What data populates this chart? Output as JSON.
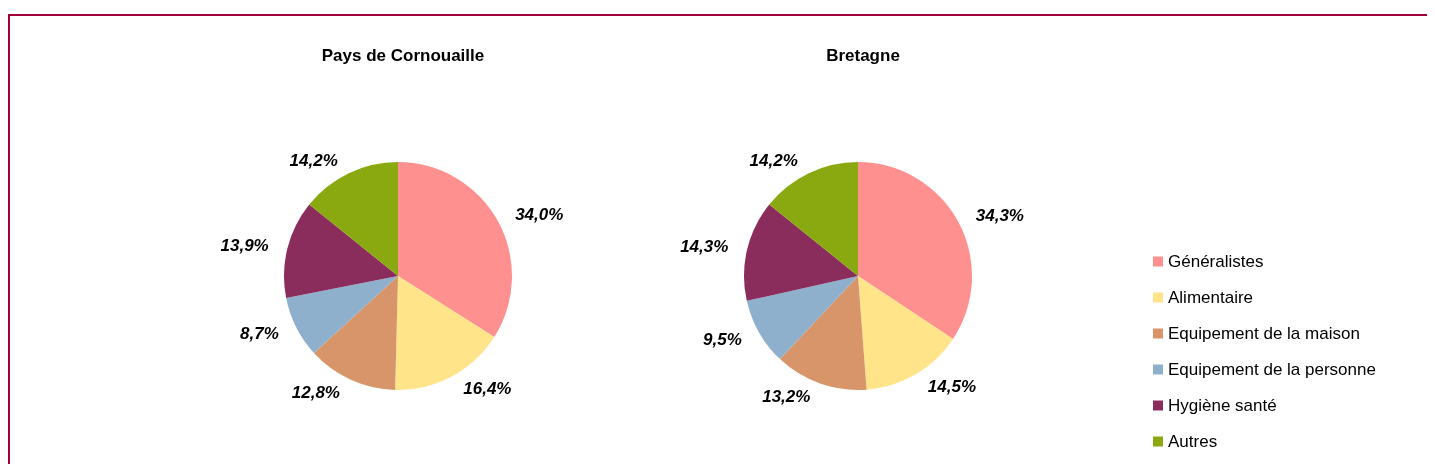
{
  "chart_data": {
    "type": "pie",
    "categories": [
      "Généralistes",
      "Alimentaire",
      "Equipement de la maison",
      "Equipement de la personne",
      "Hygiène santé",
      "Autres"
    ],
    "colors": [
      "#ff9090",
      "#ffe48a",
      "#d9956a",
      "#8fb0cc",
      "#8a2c5c",
      "#8aa810"
    ],
    "legend": "right",
    "series": [
      {
        "name": "Pays de Cornouaille",
        "values": [
          34.0,
          16.4,
          12.8,
          8.7,
          13.9,
          14.2
        ],
        "value_labels": [
          "34,0%",
          "16,4%",
          "12,8%",
          "8,7%",
          "13,9%",
          "14,2%"
        ]
      },
      {
        "name": "Bretagne",
        "values": [
          34.3,
          14.5,
          13.2,
          9.5,
          14.3,
          14.2
        ],
        "value_labels": [
          "34,3%",
          "14,5%",
          "13,2%",
          "9,5%",
          "14,3%",
          "14,2%"
        ]
      }
    ]
  }
}
